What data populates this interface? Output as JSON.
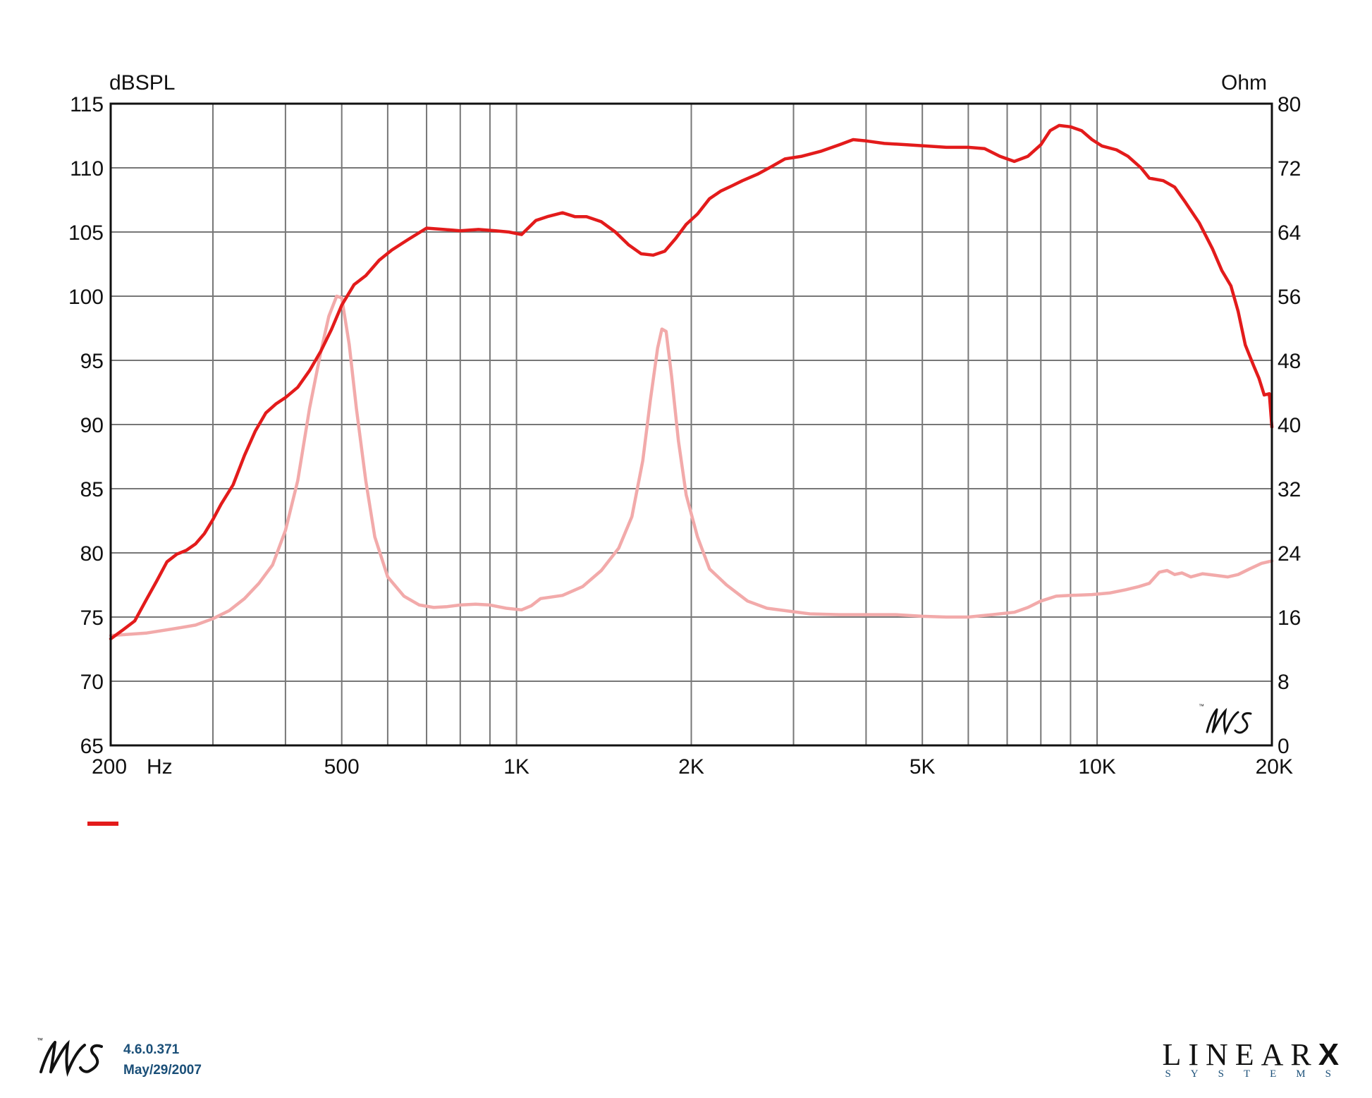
{
  "chart_data": {
    "type": "line",
    "left_axis_label": "dBSPL",
    "right_axis_label": "Ohm",
    "x_unit_label": "Hz",
    "x_scale": "log",
    "xlim": [
      200,
      20000
    ],
    "ylim_left": [
      65,
      115
    ],
    "ylim_right": [
      0,
      80
    ],
    "left_ticks": [
      "115",
      "110",
      "105",
      "100",
      "95",
      "90",
      "85",
      "80",
      "75",
      "70",
      "65"
    ],
    "right_ticks": [
      "80",
      "72",
      "64",
      "56",
      "48",
      "40",
      "32",
      "24",
      "16",
      "8",
      "0"
    ],
    "x_tick_labels": [
      {
        "value": 200,
        "label": "200"
      },
      {
        "value": 500,
        "label": "500"
      },
      {
        "value": 1000,
        "label": "1K"
      },
      {
        "value": 2000,
        "label": "2K"
      },
      {
        "value": 5000,
        "label": "5K"
      },
      {
        "value": 10000,
        "label": "10K"
      },
      {
        "value": 20000,
        "label": "20K"
      }
    ],
    "grid": true,
    "grid_lines_x": [
      300,
      400,
      500,
      600,
      700,
      800,
      900,
      1000,
      2000,
      3000,
      4000,
      5000,
      6000,
      7000,
      8000,
      9000,
      10000
    ],
    "series": [
      {
        "axis": "left",
        "color": "#e31b1b",
        "points": [
          [
            200,
            73.3
          ],
          [
            210,
            74.0
          ],
          [
            220,
            74.7
          ],
          [
            230,
            76.3
          ],
          [
            240,
            77.8
          ],
          [
            250,
            79.3
          ],
          [
            260,
            79.9
          ],
          [
            270,
            80.2
          ],
          [
            280,
            80.7
          ],
          [
            290,
            81.5
          ],
          [
            300,
            82.6
          ],
          [
            310,
            83.8
          ],
          [
            325,
            85.3
          ],
          [
            340,
            87.6
          ],
          [
            355,
            89.5
          ],
          [
            370,
            90.9
          ],
          [
            385,
            91.6
          ],
          [
            400,
            92.1
          ],
          [
            420,
            92.9
          ],
          [
            440,
            94.2
          ],
          [
            460,
            95.7
          ],
          [
            480,
            97.4
          ],
          [
            500,
            99.3
          ],
          [
            525,
            100.9
          ],
          [
            550,
            101.6
          ],
          [
            580,
            102.8
          ],
          [
            610,
            103.6
          ],
          [
            650,
            104.4
          ],
          [
            700,
            105.3
          ],
          [
            750,
            105.2
          ],
          [
            800,
            105.1
          ],
          [
            860,
            105.2
          ],
          [
            920,
            105.1
          ],
          [
            970,
            105.0
          ],
          [
            1020,
            104.8
          ],
          [
            1080,
            105.9
          ],
          [
            1130,
            106.2
          ],
          [
            1200,
            106.5
          ],
          [
            1260,
            106.2
          ],
          [
            1320,
            106.2
          ],
          [
            1400,
            105.8
          ],
          [
            1480,
            105.0
          ],
          [
            1560,
            104.0
          ],
          [
            1640,
            103.3
          ],
          [
            1720,
            103.2
          ],
          [
            1800,
            103.5
          ],
          [
            1880,
            104.5
          ],
          [
            1960,
            105.6
          ],
          [
            2050,
            106.4
          ],
          [
            2150,
            107.6
          ],
          [
            2250,
            108.2
          ],
          [
            2350,
            108.6
          ],
          [
            2450,
            109.0
          ],
          [
            2600,
            109.5
          ],
          [
            2750,
            110.1
          ],
          [
            2900,
            110.7
          ],
          [
            3100,
            110.9
          ],
          [
            3350,
            111.3
          ],
          [
            3600,
            111.8
          ],
          [
            3800,
            112.2
          ],
          [
            4000,
            112.1
          ],
          [
            4300,
            111.9
          ],
          [
            4700,
            111.8
          ],
          [
            5100,
            111.7
          ],
          [
            5500,
            111.6
          ],
          [
            6000,
            111.6
          ],
          [
            6400,
            111.5
          ],
          [
            6800,
            110.9
          ],
          [
            7200,
            110.5
          ],
          [
            7600,
            110.9
          ],
          [
            8000,
            111.8
          ],
          [
            8300,
            112.9
          ],
          [
            8600,
            113.3
          ],
          [
            9000,
            113.2
          ],
          [
            9400,
            112.9
          ],
          [
            9800,
            112.2
          ],
          [
            10200,
            111.7
          ],
          [
            10800,
            111.4
          ],
          [
            11300,
            110.9
          ],
          [
            11900,
            110.0
          ],
          [
            12300,
            109.2
          ],
          [
            13000,
            109.0
          ],
          [
            13600,
            108.5
          ],
          [
            14200,
            107.3
          ],
          [
            15000,
            105.7
          ],
          [
            15800,
            103.7
          ],
          [
            16400,
            102.0
          ],
          [
            17000,
            100.8
          ],
          [
            17500,
            98.8
          ],
          [
            18000,
            96.2
          ],
          [
            18600,
            94.6
          ],
          [
            19000,
            93.6
          ],
          [
            19400,
            92.3
          ],
          [
            19800,
            92.4
          ],
          [
            20000,
            89.8
          ]
        ]
      },
      {
        "axis": "right",
        "color": "#f2aaaa",
        "points": [
          [
            200,
            13.7
          ],
          [
            230,
            14.0
          ],
          [
            260,
            14.6
          ],
          [
            280,
            15.0
          ],
          [
            300,
            15.8
          ],
          [
            320,
            16.8
          ],
          [
            340,
            18.3
          ],
          [
            360,
            20.2
          ],
          [
            380,
            22.5
          ],
          [
            400,
            26.8
          ],
          [
            420,
            33.0
          ],
          [
            440,
            42.0
          ],
          [
            460,
            49.0
          ],
          [
            475,
            53.5
          ],
          [
            490,
            56.0
          ],
          [
            500,
            55.8
          ],
          [
            515,
            50.0
          ],
          [
            530,
            42.0
          ],
          [
            550,
            33.0
          ],
          [
            570,
            26.0
          ],
          [
            600,
            21.0
          ],
          [
            640,
            18.6
          ],
          [
            680,
            17.5
          ],
          [
            720,
            17.2
          ],
          [
            760,
            17.3
          ],
          [
            800,
            17.5
          ],
          [
            850,
            17.6
          ],
          [
            900,
            17.5
          ],
          [
            960,
            17.1
          ],
          [
            1020,
            16.9
          ],
          [
            1060,
            17.4
          ],
          [
            1100,
            18.3
          ],
          [
            1200,
            18.7
          ],
          [
            1300,
            19.8
          ],
          [
            1400,
            21.8
          ],
          [
            1500,
            24.6
          ],
          [
            1580,
            28.5
          ],
          [
            1650,
            35.5
          ],
          [
            1700,
            43.0
          ],
          [
            1750,
            49.5
          ],
          [
            1780,
            51.9
          ],
          [
            1810,
            51.6
          ],
          [
            1850,
            46.0
          ],
          [
            1900,
            38.0
          ],
          [
            1960,
            31.2
          ],
          [
            2050,
            26.0
          ],
          [
            2150,
            22.0
          ],
          [
            2300,
            20.0
          ],
          [
            2500,
            18.0
          ],
          [
            2700,
            17.1
          ],
          [
            2900,
            16.8
          ],
          [
            3200,
            16.4
          ],
          [
            3600,
            16.3
          ],
          [
            4000,
            16.3
          ],
          [
            4500,
            16.3
          ],
          [
            5000,
            16.1
          ],
          [
            5500,
            16.0
          ],
          [
            6000,
            16.0
          ],
          [
            6600,
            16.3
          ],
          [
            7200,
            16.6
          ],
          [
            7600,
            17.2
          ],
          [
            8000,
            18.0
          ],
          [
            8500,
            18.6
          ],
          [
            9000,
            18.7
          ],
          [
            9800,
            18.8
          ],
          [
            10500,
            19.0
          ],
          [
            11200,
            19.4
          ],
          [
            11800,
            19.8
          ],
          [
            12300,
            20.2
          ],
          [
            12800,
            21.6
          ],
          [
            13200,
            21.8
          ],
          [
            13600,
            21.3
          ],
          [
            14000,
            21.5
          ],
          [
            14500,
            21.0
          ],
          [
            15200,
            21.4
          ],
          [
            16000,
            21.2
          ],
          [
            16800,
            21.0
          ],
          [
            17500,
            21.3
          ],
          [
            18300,
            22.0
          ],
          [
            19200,
            22.7
          ],
          [
            20000,
            23.0
          ]
        ]
      }
    ]
  },
  "legend": {
    "swatch_color": "#e31b1b"
  },
  "footer": {
    "version": "4.6.0.371",
    "date": "May/29/2007",
    "lms_logo": "LMS",
    "brand_word": "LINEAR",
    "brand_mark": "X",
    "brand_sub": "SYSTEMS"
  }
}
